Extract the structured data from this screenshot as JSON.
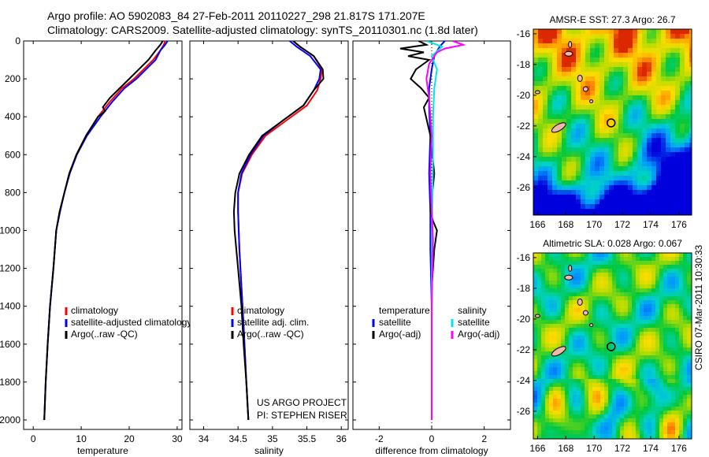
{
  "header": {
    "line1": "Argo profile: AO 5902083_84 27-Feb-2011 20110227_298 21.817S 171.207E",
    "line2": "Climatology: CARS2009. Satellite-adjusted climatology: synTS_20110301.nc (1.8d later)"
  },
  "footer": {
    "project": "US ARGO PROJECT",
    "pi": "PI: STEPHEN RISER",
    "stamp": "CSIRO 07-Mar-2011 10:30:33"
  },
  "colors": {
    "climatology": "#ff0000",
    "satellite": "#0000ff",
    "argo": "#000000",
    "satellite_sal": "#00e5ee",
    "argo_sal": "#ff00ff"
  },
  "chart_data": [
    {
      "type": "line",
      "id": "temperature",
      "xlabel": "temperature",
      "ylabel": "",
      "xlim": [
        -2,
        31
      ],
      "ylim": [
        2050,
        0
      ],
      "xticks": [
        0,
        10,
        20,
        30
      ],
      "xtick_labels": [
        "0",
        "10",
        "20",
        "30"
      ],
      "yticks": [
        0,
        200,
        400,
        600,
        800,
        1000,
        1200,
        1400,
        1600,
        1800,
        2000
      ],
      "ytick_labels": [
        "0",
        "200",
        "400",
        "600",
        "800",
        "1000",
        "1200",
        "1400",
        "1600",
        "1800",
        "2000"
      ],
      "legend": [
        "climatology",
        "satellite-adjusted climatology",
        "Argo(..raw -QC)"
      ],
      "series": [
        {
          "name": "climatology",
          "x": [
            27.5,
            27.2,
            26.5,
            25,
            23,
            21,
            18.5,
            16,
            13.5,
            11,
            9,
            7.5,
            6.5,
            5.5,
            4.8,
            4.2,
            3.5,
            3,
            2.6,
            2.3
          ],
          "y": [
            0,
            20,
            50,
            100,
            150,
            200,
            250,
            320,
            400,
            500,
            600,
            700,
            800,
            900,
            1000,
            1200,
            1400,
            1600,
            1800,
            2000
          ]
        },
        {
          "name": "satellite",
          "x": [
            28,
            27.5,
            26.5,
            25.5,
            23.5,
            21.5,
            19,
            16.5,
            14,
            11.2,
            9.1,
            7.6,
            6.5,
            5.6,
            4.8,
            4.2,
            3.5,
            3,
            2.6,
            2.3
          ],
          "y": [
            0,
            20,
            50,
            100,
            150,
            200,
            250,
            320,
            400,
            500,
            600,
            700,
            800,
            900,
            1000,
            1200,
            1400,
            1600,
            1800,
            2000
          ]
        },
        {
          "name": "argo",
          "x": [
            27,
            26.5,
            25.5,
            24,
            22,
            20,
            18,
            16,
            14.5,
            15,
            13.5,
            11,
            9,
            7.5,
            6.5,
            5.5,
            4.8,
            4.2,
            3.5,
            3,
            2.6,
            2.3
          ],
          "y": [
            0,
            20,
            50,
            100,
            150,
            200,
            250,
            300,
            350,
            370,
            400,
            500,
            600,
            700,
            800,
            900,
            1000,
            1200,
            1400,
            1600,
            1800,
            2000
          ]
        }
      ]
    },
    {
      "type": "line",
      "id": "salinity",
      "xlabel": "salinity",
      "ylabel": "",
      "xlim": [
        33.8,
        36.1
      ],
      "ylim": [
        2050,
        0
      ],
      "xticks": [
        34,
        34.5,
        35,
        35.5,
        36
      ],
      "xtick_labels": [
        "34",
        "34.5",
        "35",
        "35.5",
        "36"
      ],
      "legend": [
        "climatology",
        "satellite adj. clim.",
        "Argo(..raw -QC)"
      ],
      "series": [
        {
          "name": "climatology",
          "x": [
            35.3,
            35.4,
            35.6,
            35.72,
            35.7,
            35.65,
            35.5,
            35.2,
            34.9,
            34.7,
            34.56,
            34.5,
            34.5,
            34.52,
            34.55,
            34.58,
            34.62,
            34.65
          ],
          "y": [
            0,
            30,
            80,
            150,
            200,
            260,
            340,
            420,
            500,
            600,
            700,
            800,
            900,
            1100,
            1300,
            1500,
            1800,
            2000
          ]
        },
        {
          "name": "satellite",
          "x": [
            35.25,
            35.35,
            35.55,
            35.7,
            35.68,
            35.6,
            35.45,
            35.15,
            34.87,
            34.68,
            34.55,
            34.5,
            34.5,
            34.52,
            34.55,
            34.58,
            34.62,
            34.65
          ],
          "y": [
            0,
            30,
            80,
            150,
            200,
            260,
            340,
            420,
            500,
            600,
            700,
            800,
            900,
            1100,
            1300,
            1500,
            1800,
            2000
          ]
        },
        {
          "name": "argo",
          "x": [
            35.3,
            35.4,
            35.6,
            35.73,
            35.74,
            35.6,
            35.45,
            35.15,
            34.85,
            34.66,
            34.52,
            34.46,
            34.44,
            34.45,
            34.5,
            34.55,
            34.58,
            34.62,
            34.65
          ],
          "y": [
            0,
            30,
            80,
            150,
            200,
            260,
            340,
            420,
            500,
            600,
            700,
            800,
            900,
            1000,
            1200,
            1400,
            1600,
            1800,
            2000
          ]
        }
      ]
    },
    {
      "type": "line",
      "id": "difference",
      "xlabel": "difference from climatology",
      "ylabel": "",
      "xlim": [
        -3,
        3
      ],
      "ylim": [
        2050,
        0
      ],
      "xticks": [
        -2,
        0,
        2
      ],
      "xtick_labels": [
        "-2",
        "0",
        "2"
      ],
      "legend_left": [
        "temperature",
        "satellite",
        "Argo(-adj)"
      ],
      "legend_right": [
        "salinity",
        "satellite",
        "Argo(-adj)"
      ],
      "series": [
        {
          "name": "temperature-satellite",
          "x": [
            0.5,
            0.3,
            0.1,
            0,
            -0.1,
            -0.1,
            -0.05,
            -0.1,
            -0.05,
            -0.05,
            0,
            0,
            0
          ],
          "y": [
            0,
            30,
            80,
            150,
            250,
            350,
            500,
            700,
            900,
            1100,
            1400,
            1700,
            2000
          ]
        },
        {
          "name": "temperature-argo",
          "x": [
            -0.5,
            -0.2,
            -1.2,
            -0.3,
            -0.9,
            -0.1,
            -0.6,
            -0.8,
            -0.4,
            -0.1,
            -0.3,
            -0.05,
            0.1,
            -0.05,
            0.05,
            0.2,
            0.1,
            0,
            0,
            0
          ],
          "y": [
            0,
            20,
            40,
            60,
            80,
            100,
            150,
            200,
            250,
            300,
            350,
            500,
            700,
            900,
            950,
            1000,
            1100,
            1300,
            1600,
            2000
          ]
        },
        {
          "name": "salinity-satellite",
          "x": [
            -0.2,
            0.4,
            0,
            0.2,
            0.1,
            0.05,
            0.05,
            0.02,
            0,
            0
          ],
          "y": [
            0,
            30,
            80,
            150,
            250,
            400,
            600,
            900,
            1300,
            2000
          ]
        },
        {
          "name": "salinity-argo",
          "x": [
            0.8,
            1.2,
            0.5,
            0.2,
            -0.1,
            -0.2,
            -0.1,
            0,
            -0.05,
            0,
            0.05,
            0,
            0
          ],
          "y": [
            0,
            20,
            40,
            60,
            120,
            200,
            300,
            500,
            700,
            900,
            1050,
            1400,
            2000
          ]
        }
      ]
    },
    {
      "type": "heatmap",
      "id": "sst_map",
      "title": "AMSR-E SST: 27.3 Argo: 26.7",
      "xlim": [
        165.7,
        176.9
      ],
      "ylim": [
        -27.8,
        -15.7
      ],
      "xticks": [
        166,
        168,
        170,
        172,
        174,
        176
      ],
      "xtick_labels": [
        "166",
        "168",
        "170",
        "172",
        "174",
        "176"
      ],
      "yticks": [
        -16,
        -18,
        -20,
        -22,
        -24,
        -26
      ],
      "ytick_labels": [
        "-16",
        "-18",
        "-20",
        "-22",
        "-24",
        "-26"
      ],
      "marker": {
        "lon": 171.2,
        "lat": -21.8
      }
    },
    {
      "type": "heatmap",
      "id": "sla_map",
      "title": "Altimetric SLA: 0.028 Argo: 0.067",
      "xlim": [
        165.7,
        176.9
      ],
      "ylim": [
        -27.8,
        -15.7
      ],
      "xticks": [
        166,
        168,
        170,
        172,
        174,
        176
      ],
      "xtick_labels": [
        "166",
        "168",
        "170",
        "172",
        "174",
        "176"
      ],
      "yticks": [
        -16,
        -18,
        -20,
        -22,
        -24,
        -26
      ],
      "ytick_labels": [
        "-16",
        "-18",
        "-20",
        "-22",
        "-24",
        "-26"
      ],
      "marker": {
        "lon": 171.2,
        "lat": -21.8
      }
    }
  ]
}
